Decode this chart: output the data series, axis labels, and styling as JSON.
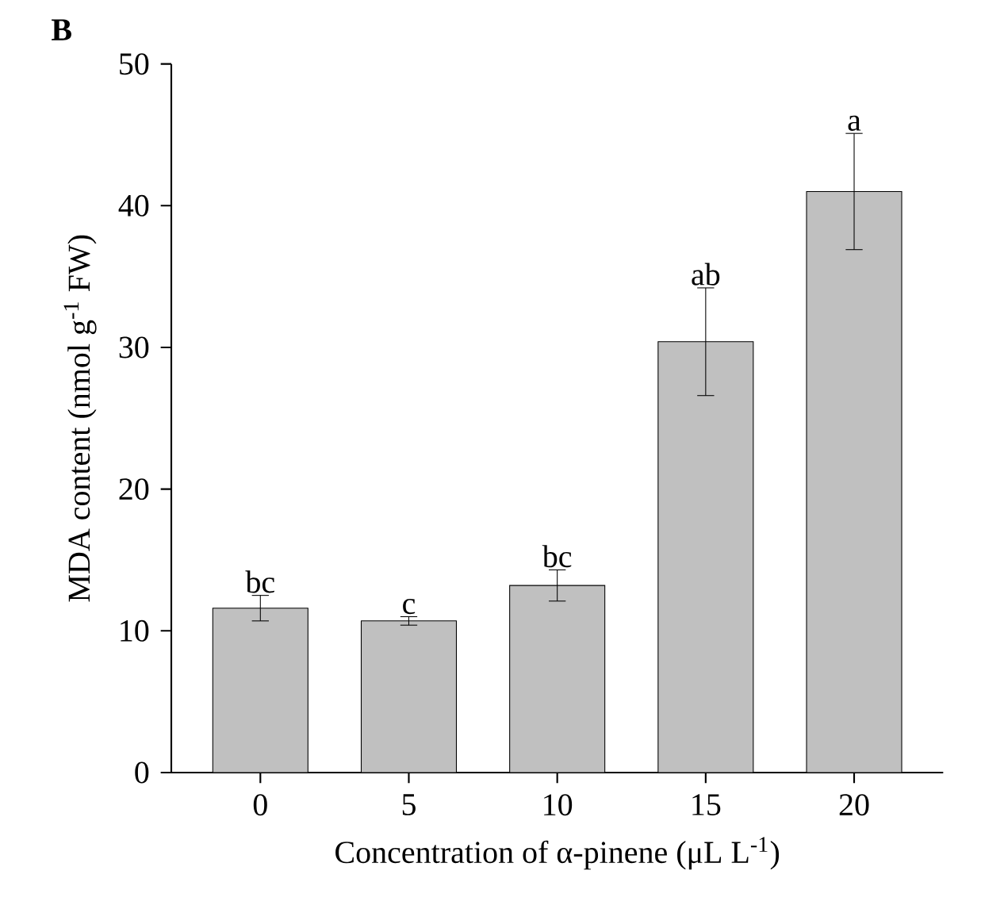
{
  "chart_data": {
    "type": "bar",
    "title": "B",
    "xlabel": "Concentration of α-pinene (μL L$^{-1}$)",
    "ylabel": "MDA content (nmol g$^{-1}$ FW)",
    "categories": [
      "0",
      "5",
      "10",
      "15",
      "20"
    ],
    "values": [
      11.6,
      10.7,
      13.2,
      30.4,
      41.0
    ],
    "errors": [
      0.9,
      0.3,
      1.1,
      3.8,
      4.1
    ],
    "color": "#c0c0c0",
    "ylim": [
      0,
      50
    ],
    "yticks": [
      0,
      10,
      20,
      30,
      40,
      50
    ],
    "grid": false,
    "annotations": [
      {
        "text": "bc",
        "x": "0",
        "y": 12.5
      },
      {
        "text": "c",
        "x": "5",
        "y": 11.0
      },
      {
        "text": "bc",
        "x": "10",
        "y": 14.3
      },
      {
        "text": "ab",
        "x": "15",
        "y": 34.2
      },
      {
        "text": "a",
        "x": "20",
        "y": 45.1
      }
    ]
  }
}
